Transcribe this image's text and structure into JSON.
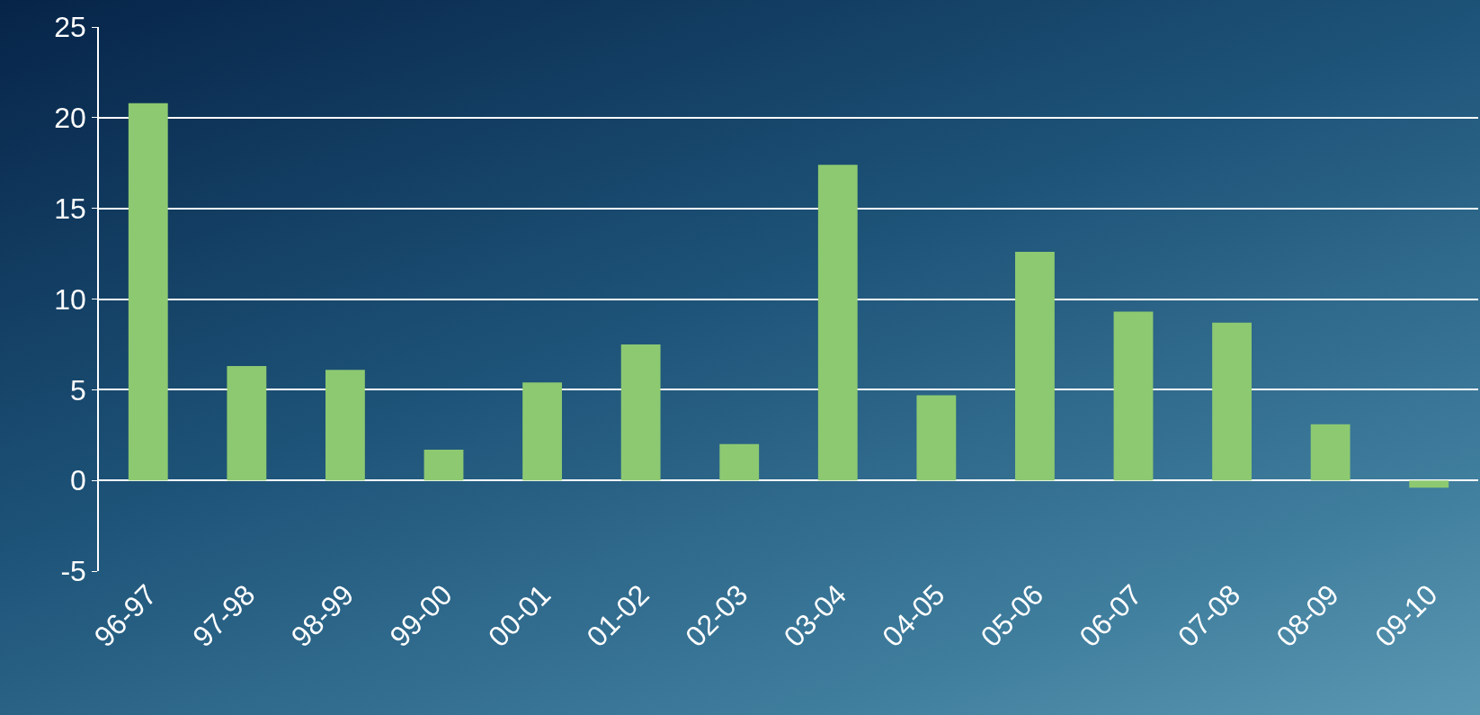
{
  "chart_data": {
    "type": "bar",
    "categories": [
      "96-97",
      "97-98",
      "98-99",
      "99-00",
      "00-01",
      "01-02",
      "02-03",
      "03-04",
      "04-05",
      "05-06",
      "06-07",
      "07-08",
      "08-09",
      "09-10"
    ],
    "values": [
      20.8,
      6.3,
      6.1,
      1.7,
      5.4,
      7.5,
      2.0,
      17.4,
      4.7,
      12.6,
      9.3,
      8.7,
      3.1,
      -0.4
    ],
    "color": "#8dc971",
    "ylim": [
      -5,
      25
    ],
    "yticks": [
      -5,
      0,
      5,
      10,
      15,
      20,
      25
    ],
    "grid": "y"
  }
}
